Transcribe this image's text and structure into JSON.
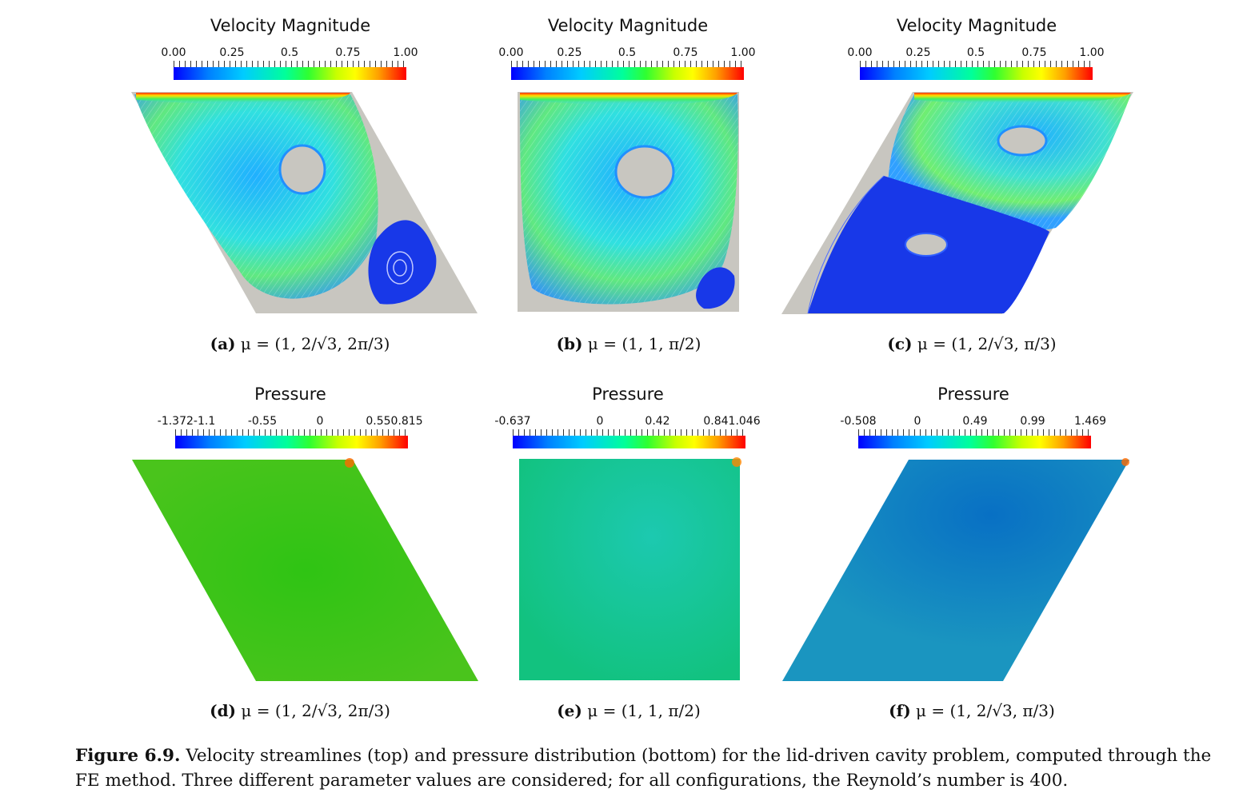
{
  "velocity_title": "Velocity Magnitude",
  "pressure_title": "Pressure",
  "velocity_ticks": [
    "0.00",
    "0.25",
    "0.5",
    "0.75",
    "1.00"
  ],
  "pressure_panels": [
    {
      "ticks": [
        "-1.372-1.1",
        "-0.55",
        "0",
        "0.550.815"
      ]
    },
    {
      "ticks": [
        "-0.637",
        "0",
        "0.42",
        "0.841.046"
      ]
    },
    {
      "ticks": [
        "-0.508",
        "0",
        "0.49",
        "0.99",
        "1.469"
      ]
    }
  ],
  "subcaptions": {
    "a": {
      "label": "(a)",
      "text": "μ = (1, 2/√3, 2π/3)"
    },
    "b": {
      "label": "(b)",
      "text": "μ = (1, 1, π/2)"
    },
    "c": {
      "label": "(c)",
      "text": "μ = (1, 2/√3, π/3)"
    },
    "d": {
      "label": "(d)",
      "text": "μ = (1, 2/√3, 2π/3)"
    },
    "e": {
      "label": "(e)",
      "text": "μ = (1, 1, π/2)"
    },
    "f": {
      "label": "(f)",
      "text": "μ = (1, 2/√3, π/3)"
    }
  },
  "figure_caption": {
    "label": "Figure 6.9.",
    "text": " Velocity streamlines (top) and pressure distribution (bottom) for the lid-driven cavity problem, computed through the FE method. Three different parameter values are considered; for all configurations, the Reynold’s number is 400."
  },
  "colors": {
    "domain_gray": "#c8c6c0",
    "pressure_a": "#3fc21a",
    "pressure_b": "#17c79a",
    "pressure_c": "#1590c0"
  }
}
